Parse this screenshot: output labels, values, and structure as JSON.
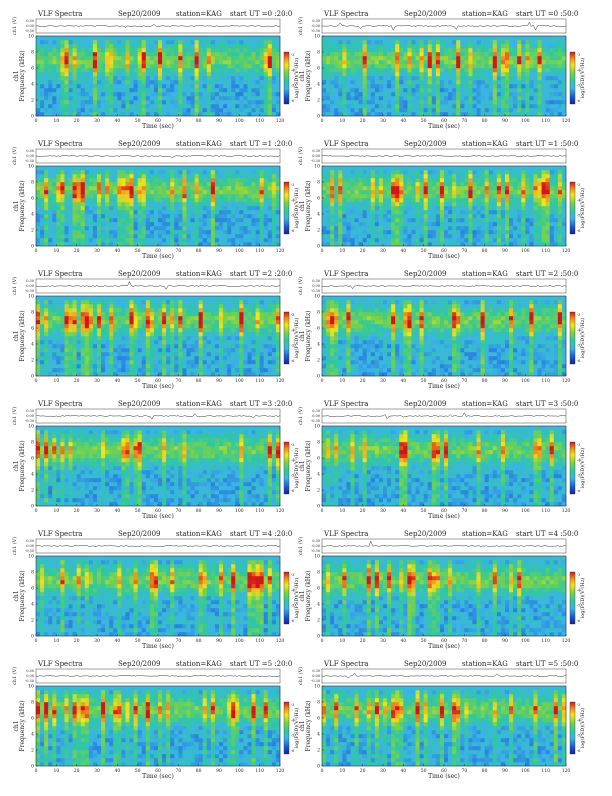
{
  "header_common": {
    "title": "VLF Spectra",
    "date": "Sep20/2009",
    "station": "station=KAG"
  },
  "axis": {
    "xlabel": "Time  (sec)",
    "ylabel_top": "ch1",
    "ylabel_bottom": "Frequency  (kHz)",
    "wave_label": "ch1 (V)",
    "wave_ticks": [
      "0.30",
      "0.00",
      "-0.30"
    ],
    "colorbar_label": "log(PSD)(V²/Hz)"
  },
  "chart_data": [
    {
      "type": "heatmap",
      "start": "start  UT  =0 :20:0",
      "x": [
        0,
        10,
        20,
        30,
        40,
        50,
        60,
        70,
        80,
        90,
        100,
        110,
        120
      ],
      "y": [
        0,
        2,
        4,
        6,
        8,
        10
      ],
      "xlim": [
        0,
        120
      ],
      "ylim": [
        0,
        10
      ],
      "colorbar_ticks": [
        -3,
        -4,
        -5,
        -6
      ]
    },
    {
      "type": "heatmap",
      "start": "start  UT  =0 :50:0",
      "x": [
        0,
        10,
        20,
        30,
        40,
        50,
        60,
        70,
        80,
        90,
        100,
        110,
        120
      ],
      "y": [
        0,
        2,
        4,
        6,
        8,
        10
      ],
      "xlim": [
        0,
        120
      ],
      "ylim": [
        0,
        10
      ],
      "colorbar_ticks": [
        -3,
        -4,
        -5,
        -6
      ]
    },
    {
      "type": "heatmap",
      "start": "start  UT  =1 :20:0",
      "x": [
        0,
        10,
        20,
        30,
        40,
        50,
        60,
        70,
        80,
        90,
        100,
        110,
        120
      ],
      "y": [
        0,
        2,
        4,
        6,
        8,
        10
      ],
      "xlim": [
        0,
        120
      ],
      "ylim": [
        0,
        10
      ],
      "colorbar_ticks": [
        -3,
        -4,
        -5,
        -6
      ]
    },
    {
      "type": "heatmap",
      "start": "start  UT  =1 :50:0",
      "x": [
        0,
        10,
        20,
        30,
        40,
        50,
        60,
        70,
        80,
        90,
        100,
        110,
        120
      ],
      "y": [
        0,
        2,
        4,
        6,
        8,
        10
      ],
      "xlim": [
        0,
        120
      ],
      "ylim": [
        0,
        10
      ],
      "colorbar_ticks": [
        -3,
        -4,
        -5,
        -6
      ]
    },
    {
      "type": "heatmap",
      "start": "start  UT  =2 :20:0",
      "x": [
        0,
        10,
        20,
        30,
        40,
        50,
        60,
        70,
        80,
        90,
        100,
        110,
        120
      ],
      "y": [
        0,
        2,
        4,
        6,
        8,
        10
      ],
      "xlim": [
        0,
        120
      ],
      "ylim": [
        0,
        10
      ],
      "colorbar_ticks": [
        -3,
        -4,
        -5,
        -6
      ]
    },
    {
      "type": "heatmap",
      "start": "start  UT  =2 :50:0",
      "x": [
        0,
        10,
        20,
        30,
        40,
        50,
        60,
        70,
        80,
        90,
        100,
        110,
        120
      ],
      "y": [
        0,
        2,
        4,
        6,
        8,
        10
      ],
      "xlim": [
        0,
        120
      ],
      "ylim": [
        0,
        10
      ],
      "colorbar_ticks": [
        -3,
        -4,
        -5,
        -6
      ]
    },
    {
      "type": "heatmap",
      "start": "start  UT  =3 :20:0",
      "x": [
        0,
        10,
        20,
        30,
        40,
        50,
        60,
        70,
        80,
        90,
        100,
        110,
        120
      ],
      "y": [
        0,
        2,
        4,
        6,
        8,
        10
      ],
      "xlim": [
        0,
        120
      ],
      "ylim": [
        0,
        10
      ],
      "colorbar_ticks": [
        -3,
        -4,
        -5,
        -6
      ]
    },
    {
      "type": "heatmap",
      "start": "start  UT  =3 :50:0",
      "x": [
        0,
        10,
        20,
        30,
        40,
        50,
        60,
        70,
        80,
        90,
        100,
        110,
        120
      ],
      "y": [
        0,
        2,
        4,
        6,
        8,
        10
      ],
      "xlim": [
        0,
        120
      ],
      "ylim": [
        0,
        10
      ],
      "colorbar_ticks": [
        -3,
        -4,
        -5,
        -6
      ]
    },
    {
      "type": "heatmap",
      "start": "start  UT  =4 :20:0",
      "x": [
        0,
        10,
        20,
        30,
        40,
        50,
        60,
        70,
        80,
        90,
        100,
        110,
        120
      ],
      "y": [
        0,
        2,
        4,
        6,
        8,
        10
      ],
      "xlim": [
        0,
        120
      ],
      "ylim": [
        0,
        10
      ],
      "colorbar_ticks": [
        -3,
        -4,
        -5,
        -6
      ]
    },
    {
      "type": "heatmap",
      "start": "start  UT  =4 :50:0",
      "x": [
        0,
        10,
        20,
        30,
        40,
        50,
        60,
        70,
        80,
        90,
        100,
        110,
        120
      ],
      "y": [
        0,
        2,
        4,
        6,
        8,
        10
      ],
      "xlim": [
        0,
        120
      ],
      "ylim": [
        0,
        10
      ],
      "colorbar_ticks": [
        -3,
        -4,
        -5,
        -6
      ]
    },
    {
      "type": "heatmap",
      "start": "start  UT  =5 :20:0",
      "x": [
        0,
        10,
        20,
        30,
        40,
        50,
        60,
        70,
        80,
        90,
        100,
        110,
        120
      ],
      "y": [
        0,
        2,
        4,
        6,
        8,
        10
      ],
      "xlim": [
        0,
        120
      ],
      "ylim": [
        0,
        10
      ],
      "colorbar_ticks": [
        -3,
        -4,
        -5,
        -6
      ]
    },
    {
      "type": "heatmap",
      "start": "start  UT  =5 :50:0",
      "x": [
        0,
        10,
        20,
        30,
        40,
        50,
        60,
        70,
        80,
        90,
        100,
        110,
        120
      ],
      "y": [
        0,
        2,
        4,
        6,
        8,
        10
      ],
      "xlim": [
        0,
        120
      ],
      "ylim": [
        0,
        10
      ],
      "colorbar_ticks": [
        -3,
        -4,
        -5,
        -6
      ]
    }
  ]
}
